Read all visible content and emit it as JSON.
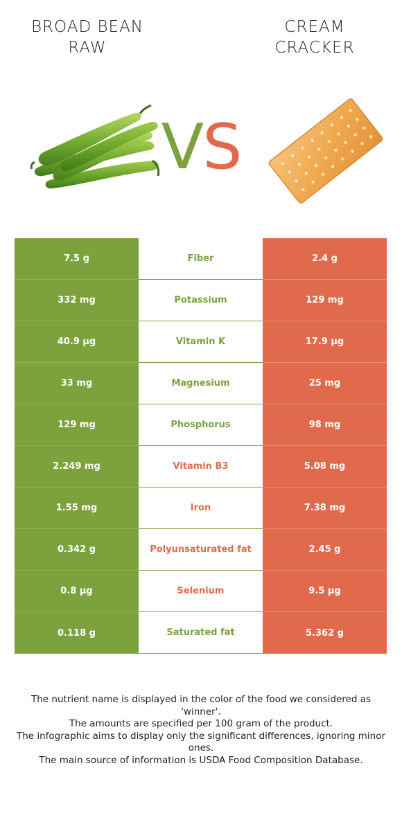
{
  "header": {
    "left_food_line1": "BROAD BEAN",
    "left_food_line2": "RAW",
    "vs_v": "V",
    "vs_s": "S",
    "right_food_line1": "CREAM",
    "right_food_line2": "CRACKER"
  },
  "colors": {
    "left_winner": "#7ba23c",
    "right_winner": "#e26a4c",
    "text_dark": "#222222"
  },
  "icons": {
    "left_food": "broad-bean-pods-image",
    "right_food": "cream-cracker-image"
  },
  "rows": [
    {
      "left": "7.5 g",
      "nutrient": "Fiber",
      "right": "2.4 g",
      "winner": "left"
    },
    {
      "left": "332 mg",
      "nutrient": "Potassium",
      "right": "129 mg",
      "winner": "left"
    },
    {
      "left": "40.9 µg",
      "nutrient": "Vitamin K",
      "right": "17.9 µg",
      "winner": "left"
    },
    {
      "left": "33 mg",
      "nutrient": "Magnesium",
      "right": "25 mg",
      "winner": "left"
    },
    {
      "left": "129 mg",
      "nutrient": "Phosphorus",
      "right": "98 mg",
      "winner": "left"
    },
    {
      "left": "2.249 mg",
      "nutrient": "Vitamin B3",
      "right": "5.08 mg",
      "winner": "right"
    },
    {
      "left": "1.55 mg",
      "nutrient": "Iron",
      "right": "7.38 mg",
      "winner": "right"
    },
    {
      "left": "0.342 g",
      "nutrient": "Polyunsaturated fat",
      "right": "2.45 g",
      "winner": "right"
    },
    {
      "left": "0.8 µg",
      "nutrient": "Selenium",
      "right": "9.5 µg",
      "winner": "right"
    },
    {
      "left": "0.118 g",
      "nutrient": "Saturated fat",
      "right": "5.362 g",
      "winner": "left"
    }
  ],
  "footnote": {
    "line1": "The nutrient name is displayed in the color of the food we considered as 'winner'.",
    "line2": "The amounts are specified per 100 gram of the product.",
    "line3": "The infographic aims to display only the significant differences, ignoring minor ones.",
    "line4": "The main source of information is USDA Food Composition Database."
  }
}
